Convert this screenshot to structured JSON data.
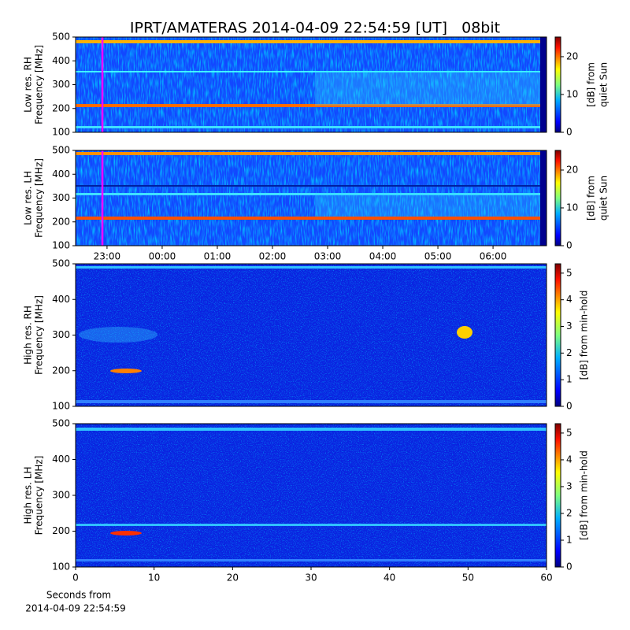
{
  "title": "IPRT/AMATERAS 2014-04-09 22:54:59 [UT]   08bit",
  "chart_data": [
    {
      "type": "spectrogram",
      "ylabel": [
        "Low res. RH",
        "Frequency [MHz]"
      ],
      "xlim": [
        22.43,
        30.97
      ],
      "ylim": [
        100,
        500
      ],
      "yticks": [
        100,
        200,
        300,
        400,
        500
      ],
      "marker": {
        "value": 22.916,
        "color": "#ff00ff"
      },
      "colorbar": {
        "label": [
          "[dB] from",
          "quiet Sun"
        ],
        "lim": [
          0,
          25.2
        ],
        "ticks": [
          0,
          10,
          20
        ]
      }
    },
    {
      "type": "spectrogram",
      "ylabel": [
        "Low res. LH",
        "Frequency [MHz]"
      ],
      "xlim": [
        22.43,
        30.97
      ],
      "ylim": [
        100,
        500
      ],
      "yticks": [
        100,
        200,
        300,
        400,
        500
      ],
      "marker": {
        "value": 22.916,
        "color": "#ff00ff"
      },
      "xticks": [
        {
          "value": 23,
          "label": "23:00"
        },
        {
          "value": 24,
          "label": "00:00"
        },
        {
          "value": 25,
          "label": "01:00"
        },
        {
          "value": 26,
          "label": "02:00"
        },
        {
          "value": 27,
          "label": "03:00"
        },
        {
          "value": 28,
          "label": "04:00"
        },
        {
          "value": 29,
          "label": "05:00"
        },
        {
          "value": 30,
          "label": "06:00"
        }
      ],
      "colorbar": {
        "label": [
          "[dB] from",
          "quiet Sun"
        ],
        "lim": [
          0,
          25.2
        ],
        "ticks": [
          0,
          10,
          20
        ]
      }
    },
    {
      "type": "spectrogram",
      "ylabel": [
        "High res. RH",
        "Frequency [MHz]"
      ],
      "xlim": [
        0,
        60
      ],
      "ylim": [
        100,
        500
      ],
      "yticks": [
        100,
        200,
        300,
        400,
        500
      ],
      "colorbar": {
        "label": [
          "[dB] from min-hold"
        ],
        "lim": [
          0,
          5.35
        ],
        "ticks": [
          0,
          1,
          2,
          3,
          4,
          5
        ]
      }
    },
    {
      "type": "spectrogram",
      "ylabel": [
        "High res. LH",
        "Frequency [MHz]"
      ],
      "xlim": [
        0,
        60
      ],
      "ylim": [
        100,
        500
      ],
      "yticks": [
        100,
        200,
        300,
        400,
        500
      ],
      "xticks": [
        0,
        10,
        20,
        30,
        40,
        50,
        60
      ],
      "xlabel": [
        "Seconds from",
        "2014-04-09 22:54:59"
      ],
      "colorbar": {
        "label": [
          "[dB] from min-hold"
        ],
        "lim": [
          0,
          5.35
        ],
        "ticks": [
          0,
          1,
          2,
          3,
          4,
          5
        ]
      }
    }
  ]
}
